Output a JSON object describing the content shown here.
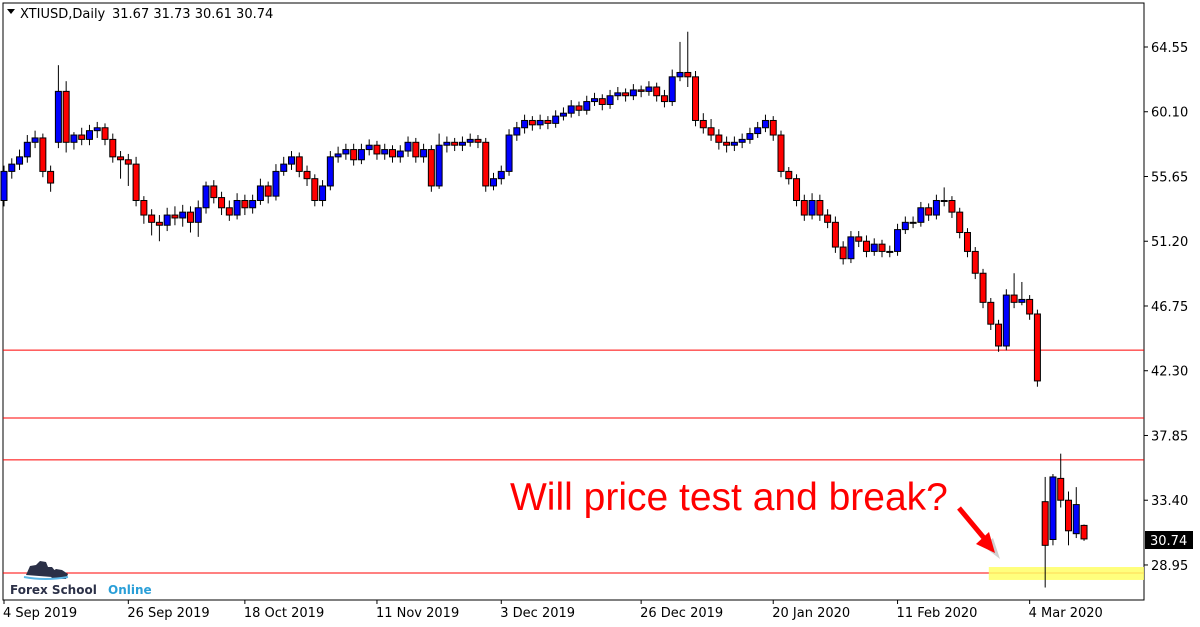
{
  "header": {
    "symbol": "XTIUSD,Daily",
    "ohlc": "31.67 31.73 30.61 30.74"
  },
  "logo": {
    "text_dark": "Forex School",
    "text_accent": "Online"
  },
  "annotation": {
    "text": "Will price test and break?"
  },
  "colors": {
    "bull": "#0000ff",
    "bear": "#ff0000",
    "level": "#ff0000",
    "zone": "#ffff66",
    "annotation": "#ff0000"
  },
  "chart_data": {
    "type": "candlestick",
    "title": "XTIUSD,Daily",
    "ylim": [
      26.5,
      67.6
    ],
    "y_ticks": [
      "64.55",
      "60.10",
      "55.65",
      "51.20",
      "46.75",
      "42.30",
      "37.85",
      "33.40",
      "28.95"
    ],
    "x_ticks": [
      {
        "label": "4 Sep 2019",
        "bar": 0
      },
      {
        "label": "26 Sep 2019",
        "bar": 16
      },
      {
        "label": "18 Oct 2019",
        "bar": 31
      },
      {
        "label": "11 Nov 2019",
        "bar": 48
      },
      {
        "label": "3 Dec 2019",
        "bar": 64
      },
      {
        "label": "26 Dec 2019",
        "bar": 82
      },
      {
        "label": "20 Jan 2020",
        "bar": 99
      },
      {
        "label": "11 Feb 2020",
        "bar": 115
      },
      {
        "label": "4 Mar 2020",
        "bar": 132
      }
    ],
    "last_price": "30.74",
    "levels": [
      43.72,
      39.05,
      36.17,
      28.4
    ],
    "zone": {
      "low": 27.92,
      "high": 28.81,
      "from_bar": 127
    },
    "candles": [
      [
        54.0,
        56.4,
        53.6,
        56.0
      ],
      [
        56.0,
        56.9,
        55.5,
        56.5
      ],
      [
        56.5,
        57.5,
        56.1,
        57.0
      ],
      [
        57.0,
        58.5,
        56.6,
        58.0
      ],
      [
        58.0,
        58.8,
        57.6,
        58.3
      ],
      [
        58.3,
        58.6,
        55.6,
        56.0
      ],
      [
        56.0,
        56.4,
        54.6,
        55.2
      ],
      [
        58.0,
        63.3,
        57.6,
        61.5
      ],
      [
        61.5,
        62.2,
        57.3,
        58.0
      ],
      [
        58.0,
        58.7,
        57.5,
        58.5
      ],
      [
        58.5,
        59.0,
        57.8,
        58.2
      ],
      [
        58.2,
        59.2,
        57.8,
        58.8
      ],
      [
        58.8,
        59.4,
        58.3,
        59.0
      ],
      [
        59.0,
        59.3,
        57.8,
        58.2
      ],
      [
        58.2,
        58.6,
        56.6,
        57.0
      ],
      [
        57.0,
        57.4,
        55.5,
        56.8
      ],
      [
        56.8,
        57.2,
        55.0,
        56.5
      ],
      [
        56.5,
        57.0,
        53.6,
        54.0
      ],
      [
        54.0,
        54.3,
        52.4,
        53.0
      ],
      [
        53.0,
        53.4,
        51.6,
        52.5
      ],
      [
        52.5,
        53.0,
        51.2,
        52.3
      ],
      [
        52.3,
        53.5,
        51.9,
        53.0
      ],
      [
        53.0,
        53.6,
        52.3,
        52.8
      ],
      [
        52.8,
        53.7,
        52.2,
        53.2
      ],
      [
        53.2,
        53.6,
        51.8,
        52.5
      ],
      [
        52.5,
        54.0,
        51.5,
        53.5
      ],
      [
        53.5,
        55.3,
        53.1,
        55.0
      ],
      [
        55.0,
        55.4,
        53.8,
        54.2
      ],
      [
        54.2,
        54.6,
        53.0,
        53.5
      ],
      [
        53.5,
        54.0,
        52.6,
        53.0
      ],
      [
        53.0,
        54.5,
        52.7,
        54.0
      ],
      [
        54.0,
        54.4,
        53.0,
        53.5
      ],
      [
        53.5,
        54.4,
        53.1,
        54.0
      ],
      [
        54.0,
        55.5,
        53.7,
        55.0
      ],
      [
        55.0,
        55.3,
        53.8,
        54.3
      ],
      [
        54.3,
        56.5,
        54.0,
        56.0
      ],
      [
        56.0,
        57.0,
        55.7,
        56.5
      ],
      [
        56.5,
        57.4,
        56.1,
        57.0
      ],
      [
        57.0,
        57.3,
        55.6,
        56.0
      ],
      [
        56.0,
        56.4,
        55.0,
        55.5
      ],
      [
        55.5,
        55.8,
        53.6,
        54.0
      ],
      [
        54.0,
        55.4,
        53.6,
        55.0
      ],
      [
        55.0,
        57.4,
        54.7,
        57.0
      ],
      [
        57.0,
        57.7,
        56.6,
        57.2
      ],
      [
        57.2,
        57.9,
        56.8,
        57.5
      ],
      [
        57.5,
        57.9,
        56.4,
        56.8
      ],
      [
        56.8,
        57.9,
        56.5,
        57.5
      ],
      [
        57.5,
        58.2,
        57.1,
        57.8
      ],
      [
        57.8,
        58.1,
        56.8,
        57.2
      ],
      [
        57.2,
        57.9,
        56.8,
        57.5
      ],
      [
        57.5,
        57.8,
        56.6,
        57.0
      ],
      [
        57.0,
        57.8,
        56.6,
        57.4
      ],
      [
        57.4,
        58.4,
        57.0,
        58.0
      ],
      [
        58.0,
        58.3,
        56.6,
        57.0
      ],
      [
        57.0,
        57.9,
        56.6,
        57.5
      ],
      [
        57.5,
        57.8,
        54.6,
        55.0
      ],
      [
        55.0,
        58.6,
        54.8,
        57.8
      ],
      [
        57.8,
        58.4,
        57.3,
        58.0
      ],
      [
        58.0,
        58.3,
        57.4,
        57.8
      ],
      [
        57.8,
        58.4,
        57.4,
        58.0
      ],
      [
        58.0,
        58.6,
        57.7,
        58.2
      ],
      [
        58.2,
        58.5,
        57.6,
        58.0
      ],
      [
        58.0,
        58.3,
        54.6,
        55.0
      ],
      [
        55.0,
        55.9,
        54.7,
        55.5
      ],
      [
        55.5,
        56.4,
        55.1,
        56.0
      ],
      [
        56.0,
        58.9,
        55.7,
        58.5
      ],
      [
        58.5,
        59.4,
        58.1,
        59.0
      ],
      [
        59.0,
        59.9,
        58.6,
        59.5
      ],
      [
        59.5,
        59.8,
        58.8,
        59.2
      ],
      [
        59.2,
        59.9,
        58.9,
        59.5
      ],
      [
        59.5,
        59.8,
        58.9,
        59.3
      ],
      [
        59.3,
        60.2,
        59.0,
        59.8
      ],
      [
        59.8,
        60.4,
        59.5,
        60.0
      ],
      [
        60.0,
        60.9,
        59.7,
        60.5
      ],
      [
        60.5,
        60.8,
        59.8,
        60.2
      ],
      [
        60.2,
        61.2,
        59.9,
        60.8
      ],
      [
        60.8,
        61.4,
        60.5,
        61.0
      ],
      [
        61.0,
        61.3,
        60.2,
        60.6
      ],
      [
        60.6,
        61.6,
        60.3,
        61.2
      ],
      [
        61.2,
        61.8,
        60.9,
        61.4
      ],
      [
        61.4,
        61.7,
        60.8,
        61.2
      ],
      [
        61.2,
        62.0,
        60.9,
        61.6
      ],
      [
        61.6,
        61.9,
        61.1,
        61.5
      ],
      [
        61.5,
        62.2,
        61.2,
        61.8
      ],
      [
        61.8,
        62.1,
        60.8,
        61.2
      ],
      [
        61.2,
        61.6,
        60.4,
        60.8
      ],
      [
        60.8,
        63.0,
        60.5,
        62.5
      ],
      [
        62.5,
        64.9,
        62.2,
        62.8
      ],
      [
        62.8,
        65.6,
        61.8,
        62.5
      ],
      [
        62.5,
        62.9,
        59.1,
        59.5
      ],
      [
        59.5,
        60.0,
        58.6,
        59.0
      ],
      [
        59.0,
        59.6,
        58.1,
        58.5
      ],
      [
        58.5,
        58.9,
        57.5,
        58.0
      ],
      [
        58.0,
        58.4,
        57.3,
        57.8
      ],
      [
        57.8,
        58.4,
        57.4,
        58.0
      ],
      [
        58.0,
        58.6,
        57.6,
        58.2
      ],
      [
        58.2,
        59.0,
        57.9,
        58.6
      ],
      [
        58.6,
        59.4,
        58.3,
        59.0
      ],
      [
        59.0,
        59.9,
        58.7,
        59.5
      ],
      [
        59.5,
        59.8,
        58.1,
        58.5
      ],
      [
        58.5,
        58.8,
        55.6,
        56.0
      ],
      [
        56.0,
        56.3,
        55.1,
        55.5
      ],
      [
        55.5,
        55.8,
        53.6,
        54.0
      ],
      [
        54.0,
        54.4,
        52.6,
        53.0
      ],
      [
        53.0,
        54.5,
        52.7,
        54.0
      ],
      [
        54.0,
        54.4,
        52.6,
        53.0
      ],
      [
        53.0,
        53.4,
        52.1,
        52.5
      ],
      [
        52.5,
        52.9,
        50.4,
        50.8
      ],
      [
        50.8,
        51.2,
        49.6,
        50.0
      ],
      [
        50.0,
        51.9,
        49.7,
        51.5
      ],
      [
        51.5,
        51.9,
        50.8,
        51.2
      ],
      [
        51.2,
        51.6,
        50.1,
        50.5
      ],
      [
        50.5,
        51.4,
        50.2,
        51.0
      ],
      [
        51.0,
        51.3,
        50.1,
        50.5
      ],
      [
        50.5,
        50.9,
        50.1,
        50.5
      ],
      [
        50.5,
        52.4,
        50.2,
        52.0
      ],
      [
        52.0,
        52.9,
        51.7,
        52.5
      ],
      [
        52.5,
        52.9,
        52.1,
        52.5
      ],
      [
        52.5,
        53.9,
        52.2,
        53.5
      ],
      [
        53.5,
        53.8,
        52.6,
        53.0
      ],
      [
        53.0,
        54.4,
        52.7,
        54.0
      ],
      [
        54.0,
        54.9,
        53.6,
        54.0
      ],
      [
        54.0,
        54.3,
        52.8,
        53.2
      ],
      [
        53.2,
        53.5,
        51.4,
        51.8
      ],
      [
        51.8,
        52.1,
        50.1,
        50.5
      ],
      [
        50.5,
        50.8,
        48.6,
        49.0
      ],
      [
        49.0,
        49.3,
        46.6,
        47.0
      ],
      [
        47.0,
        47.3,
        45.1,
        45.5
      ],
      [
        45.5,
        45.8,
        43.6,
        44.0
      ],
      [
        44.0,
        47.9,
        43.7,
        47.5
      ],
      [
        47.5,
        49.0,
        46.6,
        47.0
      ],
      [
        47.0,
        48.4,
        46.8,
        47.2
      ],
      [
        47.2,
        47.5,
        45.8,
        46.2
      ],
      [
        46.2,
        46.5,
        41.2,
        41.6
      ],
      [
        33.3,
        35.0,
        27.4,
        30.3
      ],
      [
        30.7,
        35.2,
        30.3,
        35.0
      ],
      [
        34.9,
        36.6,
        32.9,
        33.4
      ],
      [
        33.4,
        34.0,
        30.3,
        31.3
      ],
      [
        31.1,
        34.3,
        30.8,
        33.1
      ],
      [
        31.67,
        31.73,
        30.61,
        30.74
      ]
    ]
  }
}
